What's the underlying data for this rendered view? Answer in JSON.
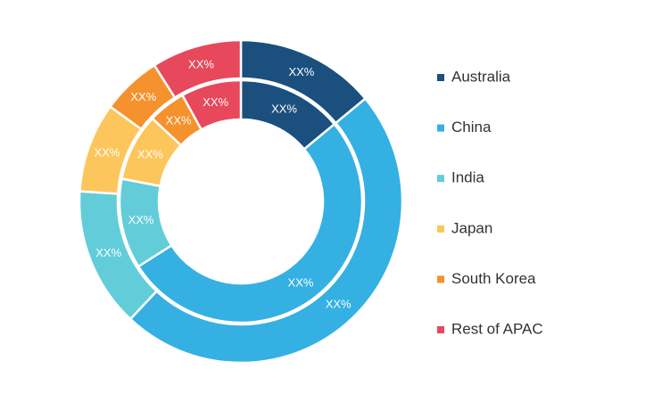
{
  "chart_data": {
    "type": "donut",
    "categories": [
      "Australia",
      "China",
      "India",
      "Japan",
      "South Korea",
      "Rest of APAC"
    ],
    "colors": [
      "#1b4f7e",
      "#35b0e2",
      "#62cdd9",
      "#fdc65c",
      "#f5922d",
      "#e8485b"
    ],
    "series": [
      {
        "values": [
          14,
          48,
          14,
          9,
          6,
          9
        ],
        "value_labels": [
          "XX%",
          "XX%",
          "XX%",
          "XX%",
          "XX%",
          "XX%"
        ]
      },
      {
        "values": [
          14,
          52,
          12,
          9,
          5,
          8
        ],
        "value_labels": [
          "XX%",
          "XX%",
          "XX%",
          "XX%",
          "XX%",
          "XX%"
        ]
      }
    ]
  }
}
